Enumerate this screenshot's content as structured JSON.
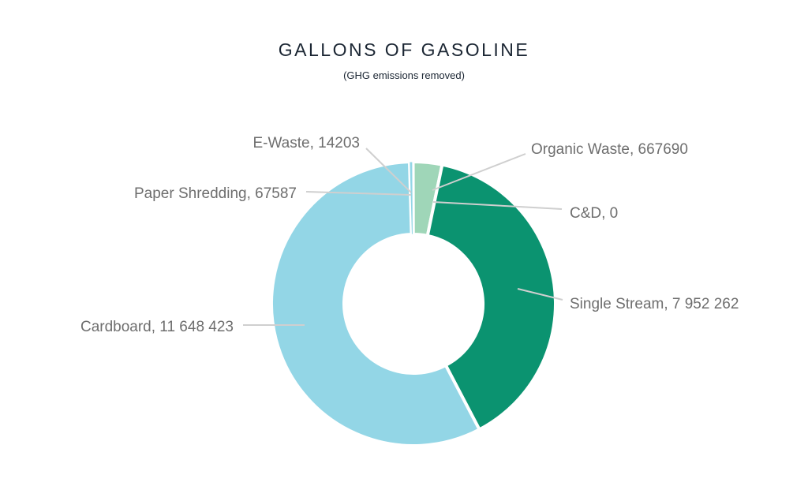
{
  "chart_data": {
    "type": "pie",
    "donut": true,
    "title": "GALLONS OF GASOLINE",
    "subtitle": "(GHG emissions removed)",
    "slices": [
      {
        "label": "E-Waste",
        "value": 14203,
        "display": "E-Waste, 14203",
        "color": "#2c4a9a"
      },
      {
        "label": "Organic Waste",
        "value": 667690,
        "display": "Organic Waste, 667690",
        "color": "#9fd6b8"
      },
      {
        "label": "C&D",
        "value": 0,
        "display": "C&D, 0",
        "color": "#5aa0c8"
      },
      {
        "label": "Single Stream",
        "value": 7952262,
        "display": "Single Stream, 7 952 262",
        "color": "#0b9370"
      },
      {
        "label": "Cardboard",
        "value": 11648423,
        "display": "Cardboard, 11 648 423",
        "color": "#93d6e6"
      },
      {
        "label": "Paper Shredding",
        "value": 67587,
        "display": "Paper Shredding, 67587",
        "color": "#93d6e6"
      }
    ],
    "legend": "none"
  }
}
